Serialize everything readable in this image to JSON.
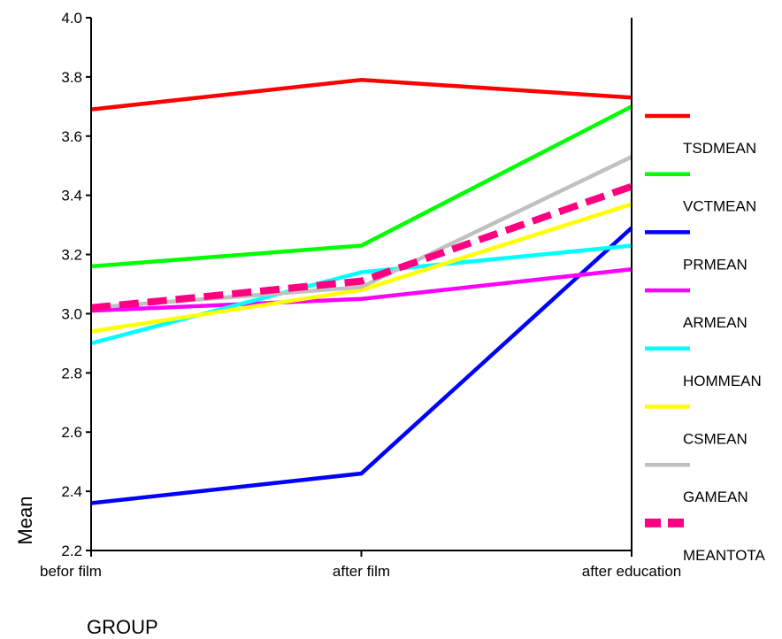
{
  "chart_data": {
    "type": "line",
    "xlabel": "GROUP",
    "ylabel": "Mean",
    "categories": [
      "befor film",
      "after film",
      "after education"
    ],
    "ylim": [
      2.2,
      4.0
    ],
    "yticks": [
      "2.2",
      "2.4",
      "2.6",
      "2.8",
      "3.0",
      "3.2",
      "3.4",
      "3.6",
      "3.8",
      "4.0"
    ],
    "legend_position": "right",
    "grid": false,
    "series": [
      {
        "name": "TSDMEAN",
        "color": "#ff0000",
        "dashed": false,
        "values": [
          3.69,
          3.79,
          3.73
        ]
      },
      {
        "name": "VCTMEAN",
        "color": "#00ff00",
        "dashed": false,
        "values": [
          3.16,
          3.23,
          3.7
        ]
      },
      {
        "name": "PRMEAN",
        "color": "#0000ff",
        "dashed": false,
        "values": [
          2.36,
          2.46,
          3.29
        ]
      },
      {
        "name": "ARMEAN",
        "color": "#ff00ff",
        "dashed": false,
        "values": [
          3.01,
          3.05,
          3.15
        ]
      },
      {
        "name": "HOMMEAN",
        "color": "#00ffff",
        "dashed": false,
        "values": [
          2.9,
          3.14,
          3.23
        ]
      },
      {
        "name": "CSMEAN",
        "color": "#ffff00",
        "dashed": false,
        "values": [
          2.94,
          3.08,
          3.37
        ]
      },
      {
        "name": "GAMEAN",
        "color": "#c0c0c0",
        "dashed": false,
        "values": [
          3.02,
          3.09,
          3.53
        ]
      },
      {
        "name": "MEANTOTA",
        "color": "#ff0080",
        "dashed": true,
        "values": [
          3.02,
          3.11,
          3.43
        ]
      }
    ]
  }
}
